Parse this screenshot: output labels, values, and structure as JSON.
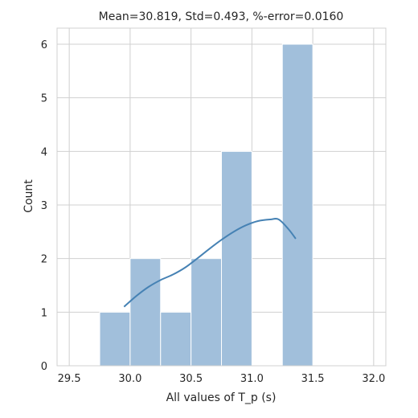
{
  "chart_data": {
    "type": "bar",
    "title": "Mean=30.819, Std=0.493, %-error=0.0160",
    "xlabel": "All values of T_p (s)",
    "ylabel": "Count",
    "xlim": [
      29.4,
      32.1
    ],
    "ylim": [
      0,
      6.3
    ],
    "xticks": [
      29.5,
      30.0,
      30.5,
      31.0,
      31.5,
      32.0
    ],
    "xtick_labels": [
      "29.5",
      "30.0",
      "30.5",
      "31.0",
      "31.5",
      "32.0"
    ],
    "yticks": [
      0,
      1,
      2,
      3,
      4,
      5,
      6
    ],
    "ytick_labels": [
      "0",
      "1",
      "2",
      "3",
      "4",
      "5",
      "6"
    ],
    "bins": [
      {
        "x0": 29.75,
        "x1": 30.0,
        "count": 1
      },
      {
        "x0": 30.0,
        "x1": 30.25,
        "count": 2
      },
      {
        "x0": 30.25,
        "x1": 30.5,
        "count": 1
      },
      {
        "x0": 30.5,
        "x1": 30.75,
        "count": 2
      },
      {
        "x0": 30.75,
        "x1": 31.0,
        "count": 4
      },
      {
        "x0": 31.0,
        "x1": 31.25,
        "count": 0
      },
      {
        "x0": 31.25,
        "x1": 31.5,
        "count": 6
      }
    ],
    "kde": {
      "x": [
        29.95,
        30.05,
        30.15,
        30.25,
        30.35,
        30.45,
        30.55,
        30.65,
        30.75,
        30.85,
        30.95,
        31.05,
        31.15,
        31.22,
        31.3,
        31.36
      ],
      "y": [
        1.1,
        1.3,
        1.47,
        1.6,
        1.7,
        1.83,
        2.0,
        2.18,
        2.35,
        2.5,
        2.62,
        2.7,
        2.73,
        2.73,
        2.55,
        2.37
      ]
    },
    "bar_color": "#a1bfdb",
    "bar_edge_color": "#ffffff",
    "kde_color": "#4682b4",
    "grid": true,
    "grid_color": "#d0d0d0"
  }
}
